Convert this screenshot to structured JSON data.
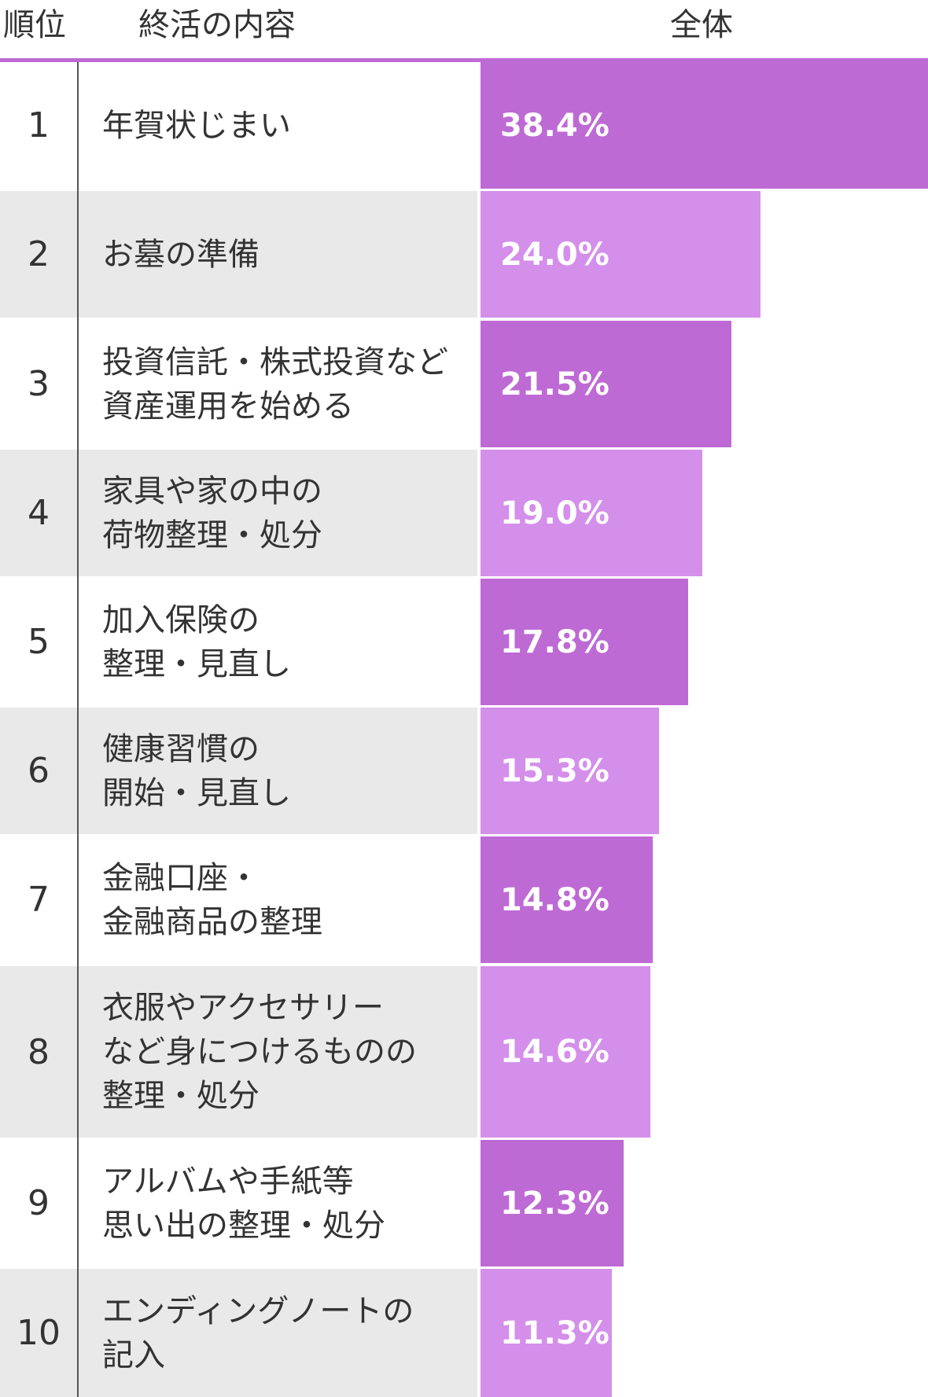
{
  "header": {
    "rank_label": "順位",
    "content_label": "終活の内容",
    "total_label": "全体"
  },
  "colors": {
    "accent": "#BE6AD4",
    "bar_dark": "#BE6AD4",
    "bar_light": "#D48FEA",
    "row_alt": "#E9E9E9",
    "row_white": "#FFFFFF"
  },
  "chart_data": {
    "type": "bar",
    "orientation": "horizontal",
    "xlim": [
      0,
      38.4
    ],
    "categories": [
      "年賀状じまい",
      "お墓の準備",
      "投資信託・株式投資など\n資産運用を始める",
      "家具や家の中の\n荷物整理・処分",
      "加入保険の\n整理・見直し",
      "健康習慣の\n開始・見直し",
      "金融口座・\n金融商品の整理",
      "衣服やアクセサリー\nなど身につけるものの\n整理・処分",
      "アルバムや手紙等\n思い出の整理・処分",
      "エンディングノートの\n記入"
    ],
    "ranks": [
      "1",
      "2",
      "3",
      "4",
      "5",
      "6",
      "7",
      "8",
      "9",
      "10"
    ],
    "values": [
      38.4,
      24.0,
      21.5,
      19.0,
      17.8,
      15.3,
      14.8,
      14.6,
      12.3,
      11.3
    ],
    "value_labels": [
      "38.4%",
      "24.0%",
      "21.5%",
      "19.0%",
      "17.8%",
      "15.3%",
      "14.8%",
      "14.6%",
      "12.3%",
      "11.3%"
    ]
  }
}
